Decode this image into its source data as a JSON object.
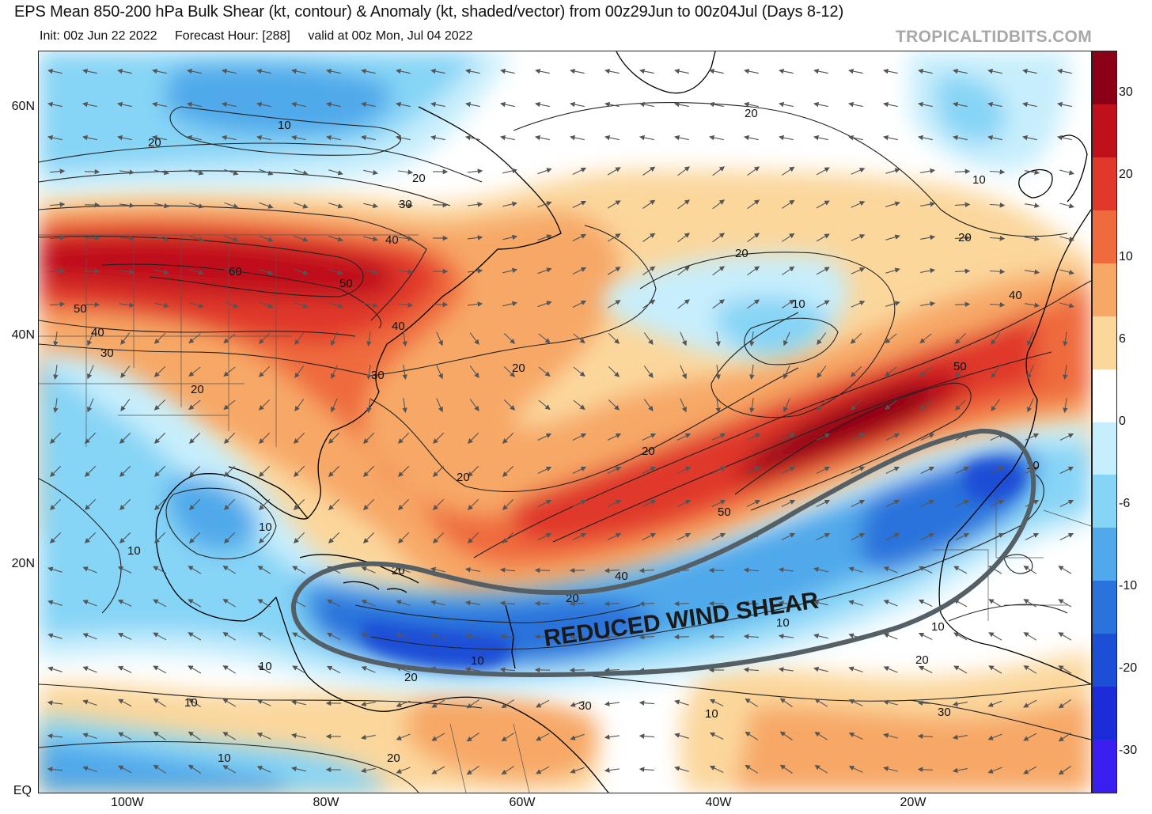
{
  "header": {
    "title": "EPS Mean 850-200 hPa Bulk Shear (kt, contour) & Anomaly (kt, shaded/vector) from 00z29Jun to 00z04Jul (Days 8-12)",
    "init": "Init: 00z Jun 22 2022",
    "forecast_hour": "Forecast Hour: [288]",
    "valid": "valid at 00z Mon, Jul 04 2022",
    "brand": "TROPICALTIDBITS.COM"
  },
  "axes": {
    "lat_labels": [
      "60N",
      "40N",
      "20N",
      "EQ"
    ],
    "lon_labels": [
      "100W",
      "80W",
      "60W",
      "40W",
      "20W"
    ]
  },
  "colorbar": {
    "labels": [
      "30",
      "20",
      "10",
      "6",
      "0",
      "-6",
      "-10",
      "-20",
      "-30"
    ],
    "colors": [
      "#8b0016",
      "#c0101c",
      "#e0382a",
      "#ef6a3c",
      "#f7a866",
      "#fbd79c",
      "#ffffff",
      "#c7eefc",
      "#86d4f6",
      "#4fa9ea",
      "#2b73dc",
      "#1c4ed6",
      "#1c2cd8",
      "#3a1ff0"
    ]
  },
  "annotation": {
    "label": "REDUCED WIND SHEAR"
  },
  "contour_labels": [
    {
      "text": "10"
    },
    {
      "text": "20"
    },
    {
      "text": "20"
    },
    {
      "text": "30"
    },
    {
      "text": "40"
    },
    {
      "text": "60"
    },
    {
      "text": "50"
    },
    {
      "text": "50"
    },
    {
      "text": "40"
    },
    {
      "text": "30"
    },
    {
      "text": "40"
    },
    {
      "text": "30"
    },
    {
      "text": "20"
    },
    {
      "text": "20"
    },
    {
      "text": "20"
    },
    {
      "text": "20"
    },
    {
      "text": "20"
    },
    {
      "text": "10"
    },
    {
      "text": "20"
    },
    {
      "text": "10"
    },
    {
      "text": "40"
    },
    {
      "text": "50"
    },
    {
      "text": "20"
    },
    {
      "text": "50"
    },
    {
      "text": "10"
    },
    {
      "text": "20"
    },
    {
      "text": "20"
    },
    {
      "text": "40"
    },
    {
      "text": "10"
    },
    {
      "text": "10"
    },
    {
      "text": "10"
    },
    {
      "text": "10"
    },
    {
      "text": "10"
    },
    {
      "text": "20"
    },
    {
      "text": "10"
    },
    {
      "text": "10"
    },
    {
      "text": "20"
    },
    {
      "text": "30"
    },
    {
      "text": "10"
    },
    {
      "text": "30"
    },
    {
      "text": "20"
    },
    {
      "text": "10"
    }
  ]
}
